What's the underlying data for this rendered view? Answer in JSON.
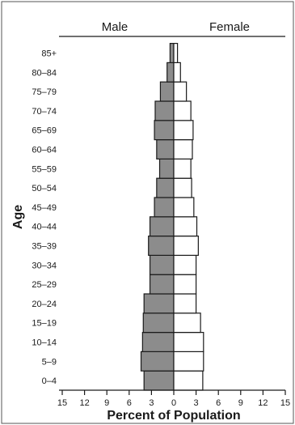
{
  "chart_data": {
    "type": "bar",
    "title": "",
    "xlabel": "Percent of Population",
    "ylabel": "Age",
    "xlim": [
      -15,
      15
    ],
    "x_ticks": [
      "15",
      "12",
      "9",
      "6",
      "3",
      "0",
      "3",
      "6",
      "9",
      "12",
      "15"
    ],
    "categories": [
      "0–4",
      "5–9",
      "10–14",
      "15–19",
      "20–24",
      "25–29",
      "30–34",
      "35–39",
      "40–44",
      "45–49",
      "50–54",
      "55–59",
      "60–64",
      "65–69",
      "70–74",
      "75–79",
      "80–84",
      "85+"
    ],
    "series": [
      {
        "name": "Male",
        "color": "#8c8c8c",
        "values": [
          4.0,
          4.4,
          4.2,
          4.1,
          4.0,
          3.2,
          3.2,
          3.4,
          3.2,
          2.6,
          2.3,
          1.9,
          2.3,
          2.6,
          2.5,
          1.8,
          0.9,
          0.5
        ]
      },
      {
        "name": "Female",
        "color": "#ffffff",
        "values": [
          3.9,
          4.0,
          4.0,
          3.6,
          3.0,
          3.0,
          3.0,
          3.3,
          3.1,
          2.7,
          2.4,
          2.3,
          2.5,
          2.6,
          2.3,
          1.7,
          0.9,
          0.5
        ]
      }
    ],
    "grid": false,
    "legend": "top"
  }
}
